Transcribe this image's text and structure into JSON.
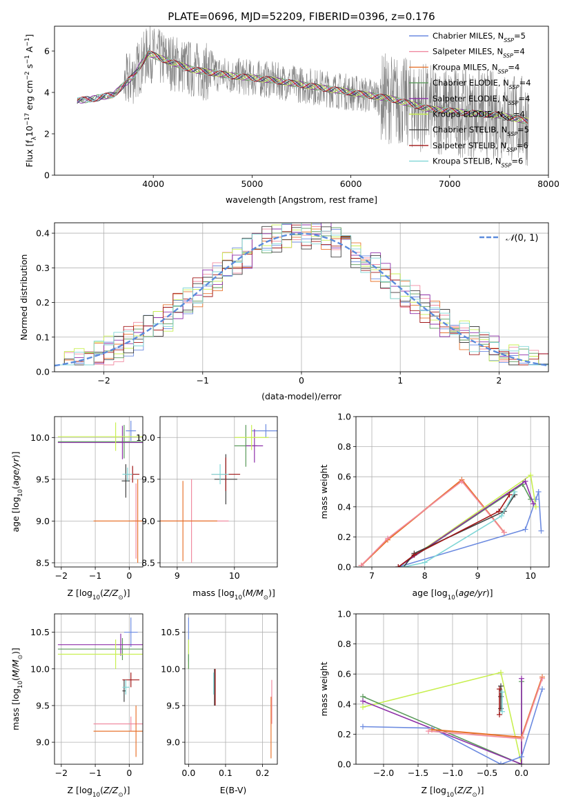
{
  "title": "PLATE=0696, MJD=52209, FIBERID=0396, z=0.176",
  "colors": {
    "chabrier_miles": "#6b8ae0",
    "salpeter_miles": "#f08aa0",
    "kroupa_miles": "#e8742e",
    "chabrier_elodie": "#5a9a5a",
    "salpeter_elodie": "#8e2fa8",
    "kroupa_elodie": "#c8ef50",
    "chabrier_stelib": "#404040",
    "salpeter_stelib": "#a01515",
    "kroupa_stelib": "#7fd6d6",
    "spectrum": "#808080",
    "gauss": "#5b8bdc",
    "grid": "#b0b0b0"
  },
  "chart_data": [
    {
      "id": "spectrum",
      "type": "line",
      "title": "PLATE=0696, MJD=52209, FIBERID=0396, z=0.176",
      "xlabel": "wavelength [Angstrom, rest frame]",
      "ylabel": "Flux [f_λ 10^-17 erg cm^-2 s^-1 A^-1]",
      "xlim": [
        3000,
        8000
      ],
      "ylim": [
        0,
        7.2
      ],
      "xticks": [
        4000,
        5000,
        6000,
        7000,
        8000
      ],
      "yticks": [
        0,
        2,
        4,
        6
      ],
      "grid": false,
      "legend_position": "right",
      "data_continuum": {
        "x": [
          3230,
          3400,
          3600,
          3800,
          3950,
          4100,
          4400,
          4800,
          5200,
          5600,
          6000,
          6400,
          6800,
          7200,
          7500,
          7800
        ],
        "y": [
          3.6,
          3.7,
          3.9,
          4.8,
          5.9,
          5.6,
          5.1,
          4.8,
          4.6,
          4.3,
          4.0,
          3.7,
          3.2,
          3.0,
          2.9,
          2.6
        ]
      },
      "legend": [
        {
          "label": "Chabrier MILES, N",
          "ssp": "SSP",
          "tail": "=5",
          "color_key": "chabrier_miles"
        },
        {
          "label": "Salpeter MILES, N",
          "ssp": "SSP",
          "tail": "=4",
          "color_key": "salpeter_miles"
        },
        {
          "label": "Kroupa MILES, N",
          "ssp": "SSP",
          "tail": "=4",
          "color_key": "kroupa_miles"
        },
        {
          "label": "Chabrier ELODIE, N",
          "ssp": "SSP",
          "tail": "=4",
          "color_key": "chabrier_elodie"
        },
        {
          "label": "Salpeter ELODIE, N",
          "ssp": "SSP",
          "tail": "=4",
          "color_key": "salpeter_elodie"
        },
        {
          "label": "Kroupa ELODIE, N",
          "ssp": "SSP",
          "tail": "=4",
          "color_key": "kroupa_elodie"
        },
        {
          "label": "Chabrier STELIB, N",
          "ssp": "SSP",
          "tail": "=5",
          "color_key": "chabrier_stelib"
        },
        {
          "label": "Salpeter STELIB, N",
          "ssp": "SSP",
          "tail": "=6",
          "color_key": "salpeter_stelib"
        },
        {
          "label": "Kroupa STELIB, N",
          "ssp": "SSP",
          "tail": "=6",
          "color_key": "kroupa_stelib"
        }
      ]
    },
    {
      "id": "residuals",
      "type": "line",
      "xlabel": "(data-model)/error",
      "ylabel": "Normed distribution",
      "xlim": [
        -2.5,
        2.5
      ],
      "ylim": [
        0,
        0.43
      ],
      "xticks": [
        -2,
        -1,
        0,
        1,
        2
      ],
      "yticks": [
        0.0,
        0.1,
        0.2,
        0.3,
        0.4
      ],
      "grid": true,
      "legend_position": "top-right",
      "legend_label": "N(0,1)",
      "legend_script": "𝒩",
      "legend_tail": "(0, 1)",
      "bin_width": 0.1,
      "bin_start": -2.5,
      "series_base": [
        0.05,
        0.06,
        0.07,
        0.08,
        0.08,
        0.09,
        0.1,
        0.12,
        0.13,
        0.15,
        0.17,
        0.18,
        0.2,
        0.21,
        0.22,
        0.24,
        0.25,
        0.26,
        0.28,
        0.3,
        0.31,
        0.32,
        0.33,
        0.34,
        0.35,
        0.36,
        0.37,
        0.37,
        0.38,
        0.38,
        0.38,
        0.37,
        0.35,
        0.34,
        0.38,
        0.36,
        0.37,
        0.36,
        0.34,
        0.33,
        0.34,
        0.35,
        0.31,
        0.29,
        0.27,
        0.25,
        0.24,
        0.22,
        0.2,
        0.19,
        0.16,
        0.15,
        0.14,
        0.13,
        0.11,
        0.1,
        0.09,
        0.08,
        0.07,
        0.06,
        0.06,
        0.05,
        0.04,
        0.04,
        0.03,
        0.03,
        0.03,
        0.03,
        0.02,
        0.02
      ]
    },
    {
      "id": "z_age",
      "type": "scatter",
      "xlabel": "Z [log10(Z/Z_sun)]",
      "ylabel": "age  [log10(age/yr)]",
      "xlim": [
        -2.2,
        0.4
      ],
      "ylim": [
        8.45,
        10.25
      ],
      "xticks": [
        -2,
        -1,
        0
      ],
      "yticks": [
        8.5,
        9.0,
        9.5,
        10.0
      ],
      "grid": true,
      "points": [
        {
          "key": "chabrier_miles",
          "x": 0.05,
          "y": 10.08,
          "xerr": 0.15,
          "yerr": 0.12
        },
        {
          "key": "salpeter_miles",
          "x": 0.2,
          "y": 9.0,
          "xerr": 0.1,
          "yerr": 0.45
        },
        {
          "key": "kroupa_miles",
          "x": 0.25,
          "y": 9.0,
          "xerr": 1.3,
          "yerr": 0.5
        },
        {
          "key": "chabrier_elodie",
          "x": -0.15,
          "y": 9.95,
          "xerr": 1.95,
          "yerr": 0.2
        },
        {
          "key": "salpeter_elodie",
          "x": -0.2,
          "y": 9.94,
          "xerr": 1.9,
          "yerr": 0.2
        },
        {
          "key": "kroupa_elodie",
          "x": -0.4,
          "y": 10.01,
          "xerr": 1.7,
          "yerr": 0.17
        },
        {
          "key": "chabrier_stelib",
          "x": -0.1,
          "y": 9.48,
          "xerr": 0.12,
          "yerr": 0.2
        },
        {
          "key": "salpeter_stelib",
          "x": 0.1,
          "y": 9.56,
          "xerr": 0.2,
          "yerr": 0.1
        },
        {
          "key": "kroupa_stelib",
          "x": -0.05,
          "y": 9.56,
          "xerr": 0.15,
          "yerr": 0.08
        }
      ]
    },
    {
      "id": "mass_age",
      "type": "scatter",
      "xlabel": "mass [log10(M/M_sun)]",
      "xlim": [
        8.7,
        10.75
      ],
      "ylim": [
        8.45,
        10.25
      ],
      "xticks": [
        9,
        10
      ],
      "yticks": [
        8.5,
        9.0,
        9.5,
        10.0
      ],
      "grid": true,
      "points": [
        {
          "key": "chabrier_miles",
          "x": 10.55,
          "y": 10.08,
          "xerr": 0.25,
          "yerr": 0.08
        },
        {
          "key": "salpeter_miles",
          "x": 9.25,
          "y": 9.0,
          "xerr": 0.65,
          "yerr": 0.5
        },
        {
          "key": "kroupa_miles",
          "x": 9.1,
          "y": 9.0,
          "xerr": 0.6,
          "yerr": 0.48
        },
        {
          "key": "chabrier_elodie",
          "x": 10.2,
          "y": 9.9,
          "xerr": 0.2,
          "yerr": 0.25
        },
        {
          "key": "salpeter_elodie",
          "x": 10.35,
          "y": 9.9,
          "xerr": 0.15,
          "yerr": 0.2
        },
        {
          "key": "kroupa_elodie",
          "x": 10.3,
          "y": 10.0,
          "xerr": 0.3,
          "yerr": 0.15
        },
        {
          "key": "chabrier_stelib",
          "x": 9.85,
          "y": 9.5,
          "xerr": 0.2,
          "yerr": 0.3
        },
        {
          "key": "salpeter_stelib",
          "x": 9.85,
          "y": 9.56,
          "xerr": 0.25,
          "yerr": 0.2
        },
        {
          "key": "kroupa_stelib",
          "x": 9.75,
          "y": 9.56,
          "xerr": 0.15,
          "yerr": 0.12
        }
      ]
    },
    {
      "id": "age_weight",
      "type": "line",
      "xlabel": "age  [log10(age/yr)]",
      "ylabel": "mass weight",
      "xlim": [
        6.7,
        10.35
      ],
      "ylim": [
        0,
        1.0
      ],
      "xticks": [
        7,
        8,
        9,
        10
      ],
      "yticks": [
        0.0,
        0.2,
        0.4,
        0.6,
        0.8,
        1.0
      ],
      "grid": true,
      "series": [
        {
          "key": "kroupa_miles",
          "x": [
            6.8,
            7.3,
            8.7,
            9.5
          ],
          "y": [
            0.01,
            0.18,
            0.58,
            0.23
          ]
        },
        {
          "key": "salpeter_miles",
          "x": [
            6.8,
            7.3,
            8.7,
            9.5
          ],
          "y": [
            0.01,
            0.19,
            0.57,
            0.23
          ]
        },
        {
          "key": "chabrier_miles",
          "x": [
            7.5,
            9.9,
            10.1,
            10.15,
            10.2
          ],
          "y": [
            0.0,
            0.25,
            0.45,
            0.5,
            0.24
          ]
        },
        {
          "key": "kroupa_elodie",
          "x": [
            7.5,
            10.0,
            10.1
          ],
          "y": [
            0.0,
            0.61,
            0.4
          ]
        },
        {
          "key": "chabrier_elodie",
          "x": [
            7.5,
            9.85,
            10.0
          ],
          "y": [
            0.0,
            0.55,
            0.45
          ]
        },
        {
          "key": "salpeter_elodie",
          "x": [
            7.5,
            9.9,
            10.05
          ],
          "y": [
            0.0,
            0.57,
            0.42
          ]
        },
        {
          "key": "chabrier_stelib",
          "x": [
            7.6,
            7.8,
            9.5,
            9.7
          ],
          "y": [
            0.0,
            0.09,
            0.37,
            0.48
          ]
        },
        {
          "key": "salpeter_stelib",
          "x": [
            7.5,
            7.8,
            9.4,
            9.6
          ],
          "y": [
            0.0,
            0.08,
            0.37,
            0.48
          ]
        },
        {
          "key": "kroupa_stelib",
          "x": [
            7.6,
            8.0,
            9.45,
            9.7
          ],
          "y": [
            0.0,
            0.03,
            0.34,
            0.5
          ]
        }
      ]
    },
    {
      "id": "z_mass",
      "type": "scatter",
      "xlabel": "Z [log10(Z/Z_sun)]",
      "ylabel": "mass [log10(M/M_sun)]",
      "xlim": [
        -2.2,
        0.4
      ],
      "ylim": [
        8.7,
        10.75
      ],
      "xticks": [
        -2,
        -1,
        0
      ],
      "yticks": [
        9.0,
        9.5,
        10.0,
        10.5
      ],
      "grid": true,
      "points": [
        {
          "key": "chabrier_miles",
          "x": 0.05,
          "y": 10.5,
          "xerr": 0.2,
          "yerr": 0.2
        },
        {
          "key": "salpeter_miles",
          "x": 0.05,
          "y": 9.25,
          "xerr": 1.1,
          "yerr": 0.1
        },
        {
          "key": "kroupa_miles",
          "x": 0.2,
          "y": 9.15,
          "xerr": 1.25,
          "yerr": 0.35
        },
        {
          "key": "chabrier_elodie",
          "x": -0.2,
          "y": 10.27,
          "xerr": 1.9,
          "yerr": 0.15
        },
        {
          "key": "salpeter_elodie",
          "x": -0.25,
          "y": 10.33,
          "xerr": 1.85,
          "yerr": 0.15
        },
        {
          "key": "kroupa_elodie",
          "x": -0.4,
          "y": 10.2,
          "xerr": 1.7,
          "yerr": 0.2
        },
        {
          "key": "chabrier_stelib",
          "x": -0.15,
          "y": 9.7,
          "xerr": 0.05,
          "yerr": 0.15
        },
        {
          "key": "salpeter_stelib",
          "x": 0.05,
          "y": 9.85,
          "xerr": 0.25,
          "yerr": 0.1
        },
        {
          "key": "kroupa_stelib",
          "x": -0.1,
          "y": 9.75,
          "xerr": 0.1,
          "yerr": 0.1
        }
      ]
    },
    {
      "id": "ebv_mass",
      "type": "scatter",
      "xlabel": "E(B-V)",
      "xlim": [
        -0.01,
        0.24
      ],
      "ylim": [
        8.7,
        10.75
      ],
      "xticks": [
        0.0,
        0.1,
        0.2
      ],
      "yticks": [
        9.0,
        9.5,
        10.0,
        10.5
      ],
      "grid": true,
      "points": [
        {
          "key": "chabrier_miles",
          "x": 0.0,
          "y": 10.4,
          "xerr": 0.0,
          "yerr": 0.3
        },
        {
          "key": "kroupa_elodie",
          "x": 0.0,
          "y": 10.2,
          "xerr": 0.0,
          "yerr": 0.2
        },
        {
          "key": "chabrier_elodie",
          "x": 0.0,
          "y": 10.1,
          "xerr": 0.0,
          "yerr": 0.1
        },
        {
          "key": "chabrier_stelib",
          "x": 0.07,
          "y": 9.75,
          "xerr": 0.0,
          "yerr": 0.25
        },
        {
          "key": "salpeter_stelib",
          "x": 0.072,
          "y": 9.75,
          "xerr": 0.0,
          "yerr": 0.25
        },
        {
          "key": "kroupa_stelib",
          "x": 0.068,
          "y": 9.8,
          "xerr": 0.0,
          "yerr": 0.15
        },
        {
          "key": "salpeter_miles",
          "x": 0.225,
          "y": 9.55,
          "xerr": 0.0,
          "yerr": 0.3
        },
        {
          "key": "kroupa_miles",
          "x": 0.223,
          "y": 9.2,
          "xerr": 0.0,
          "yerr": 0.42
        }
      ]
    },
    {
      "id": "z_weight",
      "type": "line",
      "xlabel": "Z [log10(Z/Z_sun)]",
      "ylabel": "mass weight",
      "xlim": [
        -2.4,
        0.4
      ],
      "ylim": [
        0,
        1.0
      ],
      "xticks": [
        -2.0,
        -1.5,
        -1.0,
        -0.5,
        0.0
      ],
      "yticks": [
        0.0,
        0.2,
        0.4,
        0.6,
        0.8,
        1.0
      ],
      "grid": true,
      "series": [
        {
          "key": "kroupa_elodie",
          "x": [
            -2.3,
            -0.3,
            0.0
          ],
          "y": [
            0.38,
            0.61,
            0.0
          ]
        },
        {
          "key": "chabrier_elodie",
          "x": [
            -2.3,
            0.0,
            0.0
          ],
          "y": [
            0.45,
            0.0,
            0.55
          ]
        },
        {
          "key": "salpeter_elodie",
          "x": [
            -2.3,
            0.0,
            0.0
          ],
          "y": [
            0.42,
            0.0,
            0.57
          ]
        },
        {
          "key": "chabrier_miles",
          "x": [
            -2.3,
            -1.3,
            -0.3,
            0.0,
            0.3
          ],
          "y": [
            0.25,
            0.24,
            0.0,
            0.05,
            0.5
          ]
        },
        {
          "key": "kroupa_miles",
          "x": [
            -1.3,
            0.0,
            0.3
          ],
          "y": [
            0.23,
            0.18,
            0.58
          ]
        },
        {
          "key": "salpeter_miles",
          "x": [
            -1.35,
            0.0,
            0.3
          ],
          "y": [
            0.22,
            0.17,
            0.57
          ]
        },
        {
          "key": "chabrier_stelib",
          "x": [
            -0.3,
            -0.3,
            -0.3
          ],
          "y": [
            0.37,
            0.45,
            0.52
          ]
        },
        {
          "key": "salpeter_stelib",
          "x": [
            -0.32,
            -0.32
          ],
          "y": [
            0.33,
            0.5
          ]
        },
        {
          "key": "kroupa_stelib",
          "x": [
            -0.28,
            -0.28
          ],
          "y": [
            0.35,
            0.48
          ]
        }
      ]
    }
  ]
}
